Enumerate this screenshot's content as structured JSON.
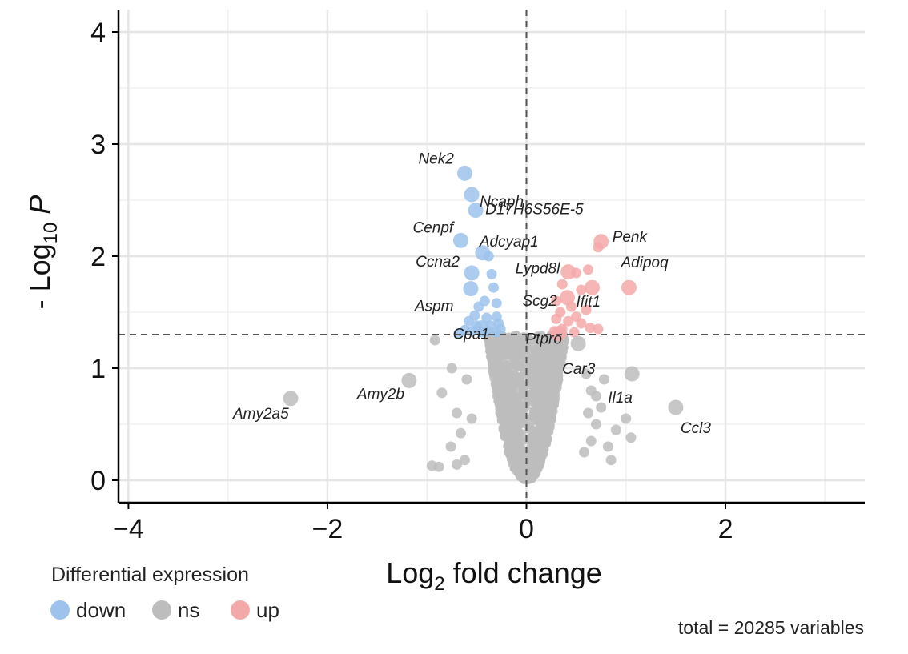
{
  "chart_data": {
    "type": "scatter",
    "subtype": "volcano",
    "xlabel": {
      "base": "Log",
      "sub": "2",
      "rest": " fold change"
    },
    "ylabel": {
      "base": "- Log",
      "sub": "10",
      "rest": " P"
    },
    "xlim": [
      -4.1,
      3.4
    ],
    "ylim": [
      -0.2,
      4.2
    ],
    "xticks": [
      -4,
      -2,
      0,
      2
    ],
    "xtick_labels": [
      "−4",
      "−2",
      "0",
      "2"
    ],
    "yticks": [
      0,
      1,
      2,
      3,
      4
    ],
    "ytick_labels": [
      "0",
      "1",
      "2",
      "3",
      "4"
    ],
    "grid": true,
    "thresholds": {
      "x": 0,
      "y": 1.3
    },
    "colors": {
      "down": "#9dc3ec",
      "ns": "#bdbdbd",
      "up": "#f4a9a9",
      "guide": "#555555"
    },
    "legend": {
      "title": "Differential expression",
      "position": "bottom-left",
      "entries": [
        {
          "key": "down",
          "label": "down"
        },
        {
          "key": "ns",
          "label": "ns"
        },
        {
          "key": "up",
          "label": "up"
        }
      ]
    },
    "caption": "total = 20285 variables",
    "labeled_points": [
      {
        "gene": "Nek2",
        "x": -0.62,
        "y": 2.74,
        "group": "down"
      },
      {
        "gene": "Ncaph",
        "x": -0.55,
        "y": 2.55,
        "group": "down"
      },
      {
        "gene": "D17H6S56E-5",
        "x": -0.51,
        "y": 2.41,
        "group": "down"
      },
      {
        "gene": "Cenpf",
        "x": -0.66,
        "y": 2.14,
        "group": "down"
      },
      {
        "gene": "Adcyap1",
        "x": -0.44,
        "y": 2.03,
        "group": "down"
      },
      {
        "gene": "Ccna2",
        "x": -0.55,
        "y": 1.85,
        "group": "down"
      },
      {
        "gene": "Aspm",
        "x": -0.56,
        "y": 1.71,
        "group": "down"
      },
      {
        "gene": "Cpa1",
        "x": -0.45,
        "y": 1.36,
        "group": "down"
      },
      {
        "gene": "Penk",
        "x": 0.75,
        "y": 2.13,
        "group": "up"
      },
      {
        "gene": "Lypd8l",
        "x": 0.42,
        "y": 1.86,
        "group": "up"
      },
      {
        "gene": "Adipoq",
        "x": 1.03,
        "y": 1.72,
        "group": "up"
      },
      {
        "gene": "Scg2",
        "x": 0.41,
        "y": 1.63,
        "group": "up"
      },
      {
        "gene": "Ifit1",
        "x": 0.66,
        "y": 1.72,
        "group": "up"
      },
      {
        "gene": "Ptpro",
        "x": 0.33,
        "y": 1.31,
        "group": "up"
      },
      {
        "gene": "Car3",
        "x": 0.52,
        "y": 1.22,
        "group": "ns"
      },
      {
        "gene": "Il1a",
        "x": 1.06,
        "y": 0.95,
        "group": "ns"
      },
      {
        "gene": "Ccl3",
        "x": 1.5,
        "y": 0.65,
        "group": "ns"
      },
      {
        "gene": "Amy2b",
        "x": -1.18,
        "y": 0.89,
        "group": "ns"
      },
      {
        "gene": "Amy2a5",
        "x": -2.37,
        "y": 0.73,
        "group": "ns"
      }
    ],
    "points": [
      {
        "x": -0.38,
        "y": 2.0,
        "group": "down"
      },
      {
        "x": -0.35,
        "y": 1.84,
        "group": "down"
      },
      {
        "x": -0.33,
        "y": 1.72,
        "group": "down"
      },
      {
        "x": -0.42,
        "y": 1.6,
        "group": "down"
      },
      {
        "x": -0.48,
        "y": 1.55,
        "group": "down"
      },
      {
        "x": -0.3,
        "y": 1.58,
        "group": "down"
      },
      {
        "x": -0.52,
        "y": 1.47,
        "group": "down"
      },
      {
        "x": -0.4,
        "y": 1.45,
        "group": "down"
      },
      {
        "x": -0.3,
        "y": 1.46,
        "group": "down"
      },
      {
        "x": -0.58,
        "y": 1.42,
        "group": "down"
      },
      {
        "x": -0.5,
        "y": 1.38,
        "group": "down"
      },
      {
        "x": -0.36,
        "y": 1.38,
        "group": "down"
      },
      {
        "x": -0.28,
        "y": 1.4,
        "group": "down"
      },
      {
        "x": -0.62,
        "y": 1.34,
        "group": "down"
      },
      {
        "x": -0.55,
        "y": 1.33,
        "group": "down"
      },
      {
        "x": -0.45,
        "y": 1.32,
        "group": "down"
      },
      {
        "x": -0.38,
        "y": 1.33,
        "group": "down"
      },
      {
        "x": -0.3,
        "y": 1.32,
        "group": "down"
      },
      {
        "x": -0.26,
        "y": 1.35,
        "group": "down"
      },
      {
        "x": -0.68,
        "y": 1.31,
        "group": "down"
      },
      {
        "x": 0.72,
        "y": 2.08,
        "group": "up"
      },
      {
        "x": 0.62,
        "y": 1.88,
        "group": "up"
      },
      {
        "x": 0.5,
        "y": 1.85,
        "group": "up"
      },
      {
        "x": 0.36,
        "y": 1.75,
        "group": "up"
      },
      {
        "x": 0.55,
        "y": 1.7,
        "group": "up"
      },
      {
        "x": 0.3,
        "y": 1.6,
        "group": "up"
      },
      {
        "x": 0.45,
        "y": 1.55,
        "group": "up"
      },
      {
        "x": 0.6,
        "y": 1.52,
        "group": "up"
      },
      {
        "x": 0.34,
        "y": 1.5,
        "group": "up"
      },
      {
        "x": 0.5,
        "y": 1.46,
        "group": "up"
      },
      {
        "x": 0.3,
        "y": 1.44,
        "group": "up"
      },
      {
        "x": 0.42,
        "y": 1.42,
        "group": "up"
      },
      {
        "x": 0.55,
        "y": 1.4,
        "group": "up"
      },
      {
        "x": 0.64,
        "y": 1.36,
        "group": "up"
      },
      {
        "x": 0.72,
        "y": 1.35,
        "group": "up"
      },
      {
        "x": 0.36,
        "y": 1.35,
        "group": "up"
      },
      {
        "x": 0.28,
        "y": 1.33,
        "group": "up"
      },
      {
        "x": 0.48,
        "y": 1.32,
        "group": "up"
      },
      {
        "x": -0.92,
        "y": 1.25,
        "group": "ns"
      },
      {
        "x": -0.85,
        "y": 0.78,
        "group": "ns"
      },
      {
        "x": -0.75,
        "y": 1.0,
        "group": "ns"
      },
      {
        "x": -0.7,
        "y": 0.6,
        "group": "ns"
      },
      {
        "x": -0.76,
        "y": 0.3,
        "group": "ns"
      },
      {
        "x": -0.95,
        "y": 0.13,
        "group": "ns"
      },
      {
        "x": -0.88,
        "y": 0.12,
        "group": "ns"
      },
      {
        "x": -0.7,
        "y": 0.14,
        "group": "ns"
      },
      {
        "x": -0.62,
        "y": 0.18,
        "group": "ns"
      },
      {
        "x": -0.6,
        "y": 0.9,
        "group": "ns"
      },
      {
        "x": -0.55,
        "y": 0.55,
        "group": "ns"
      },
      {
        "x": -0.66,
        "y": 0.42,
        "group": "ns"
      },
      {
        "x": 0.6,
        "y": 0.95,
        "group": "ns"
      },
      {
        "x": 0.65,
        "y": 0.8,
        "group": "ns"
      },
      {
        "x": 0.62,
        "y": 0.6,
        "group": "ns"
      },
      {
        "x": 0.7,
        "y": 0.5,
        "group": "ns"
      },
      {
        "x": 0.75,
        "y": 0.65,
        "group": "ns"
      },
      {
        "x": 1.0,
        "y": 0.55,
        "group": "ns"
      },
      {
        "x": 1.05,
        "y": 0.38,
        "group": "ns"
      },
      {
        "x": 0.9,
        "y": 0.45,
        "group": "ns"
      },
      {
        "x": 0.82,
        "y": 0.3,
        "group": "ns"
      },
      {
        "x": 0.85,
        "y": 0.18,
        "group": "ns"
      },
      {
        "x": 0.65,
        "y": 0.35,
        "group": "ns"
      },
      {
        "x": 0.58,
        "y": 0.25,
        "group": "ns"
      },
      {
        "x": 0.7,
        "y": 0.75,
        "group": "ns"
      },
      {
        "x": 0.78,
        "y": 0.9,
        "group": "ns"
      }
    ]
  }
}
